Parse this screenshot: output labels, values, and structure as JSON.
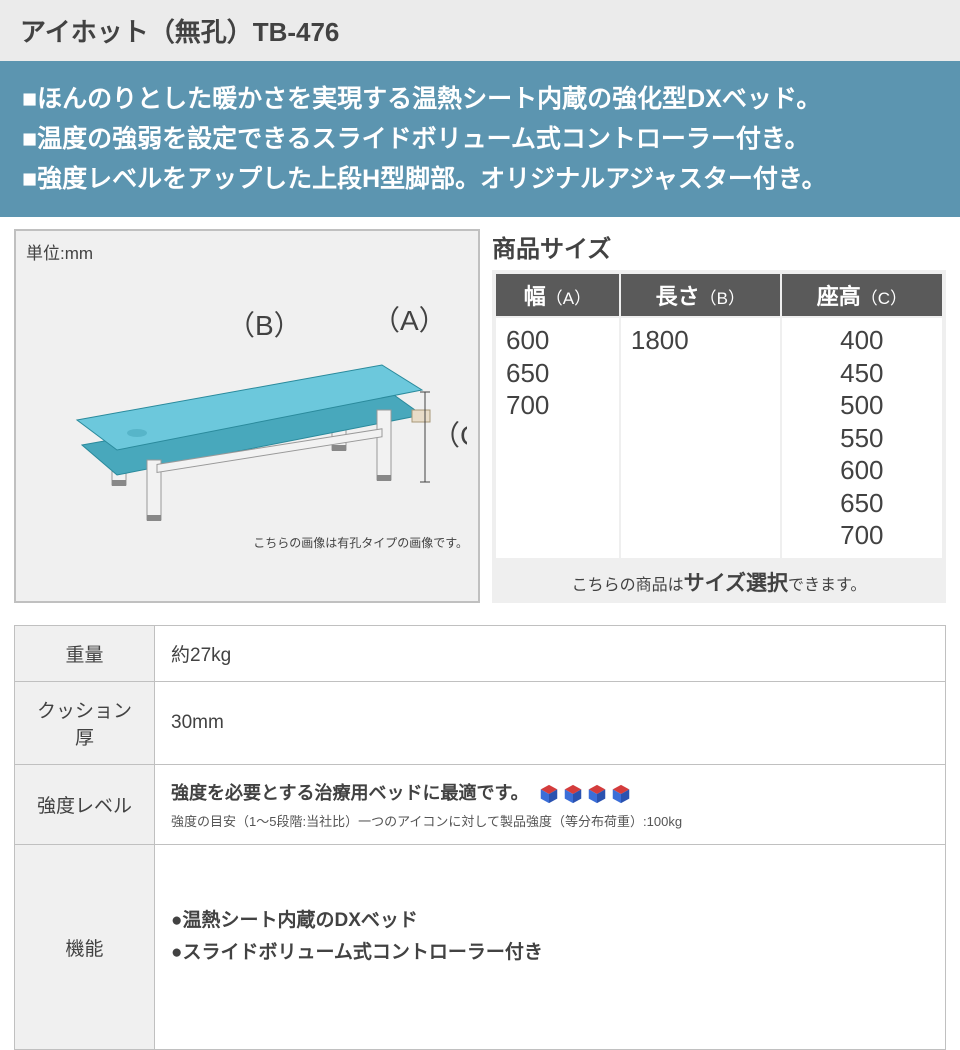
{
  "title": "アイホット（無孔）TB-476",
  "colors": {
    "banner_bg": "#5c95b0",
    "banner_text": "#ffffff",
    "title_bg": "#ebebeb",
    "text": "#424242",
    "border": "#c0c0c0",
    "th_bg": "#5a5a5a",
    "light_bg": "#f0f0f0",
    "bed_top": "#6cc8dc",
    "bed_side": "#48a8bc",
    "leg": "#f2f2f2",
    "cube_blue": "#3b6ed8",
    "cube_red": "#d43c3c"
  },
  "features": [
    "■ほんのりとした暖かさを実現する温熱シート内蔵の強化型DXベッド。",
    "■温度の強弱を設定できるスライドボリューム式コントローラー付き。",
    "■強度レベルをアップした上段H型脚部。オリジナルアジャスター付き。"
  ],
  "diagram": {
    "unit_label": "単位:mm",
    "label_a": "（A）",
    "label_b": "（B）",
    "label_c": "（C）",
    "caption": "こちらの画像は有孔タイプの画像です。"
  },
  "size_title": "商品サイズ",
  "size_headers": {
    "a": "幅",
    "a_sub": "（A）",
    "b": "長さ",
    "b_sub": "（B）",
    "c": "座高",
    "c_sub": "（C）"
  },
  "size_values": {
    "width": [
      "600",
      "650",
      "700"
    ],
    "length": [
      "1800"
    ],
    "height": [
      "400",
      "450",
      "500",
      "550",
      "600",
      "650",
      "700"
    ]
  },
  "size_note_pre": "こちらの商品は",
  "size_note_strong": "サイズ選択",
  "size_note_post": "できます。",
  "specs": {
    "weight_label": "重量",
    "weight_value": "約27kg",
    "cushion_label": "クッション厚",
    "cushion_value": "30mm",
    "strength_label": "強度レベル",
    "strength_main": "強度を必要とする治療用ベッドに最適です。",
    "strength_sub": "強度の目安（1〜5段階:当社比）一つのアイコンに対して製品強度（等分布荷重）:100kg",
    "strength_icon_count": 4,
    "kinou_label": "機能",
    "kinou_lines": [
      "●温熱シート内蔵のDXベッド",
      "●スライドボリューム式コントローラー付き"
    ]
  }
}
